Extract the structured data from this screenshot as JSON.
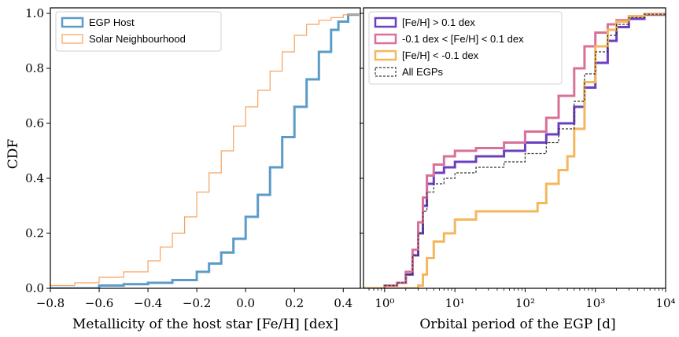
{
  "figure": {
    "background": "#ffffff"
  },
  "chart_data": [
    {
      "type": "line",
      "step": true,
      "xlabel": "Metallicity of the host star [Fe/H] [dex]",
      "ylabel": "CDF",
      "xlim": [
        -0.8,
        0.47
      ],
      "ylim": [
        0.0,
        1.02
      ],
      "xticks": [
        -0.8,
        -0.6,
        -0.4,
        -0.2,
        0.0,
        0.2,
        0.4
      ],
      "xtick_labels": [
        "−0.8",
        "−0.6",
        "−0.4",
        "−0.2",
        "0.0",
        "0.2",
        "0.4"
      ],
      "yticks": [
        0.0,
        0.2,
        0.4,
        0.6,
        0.8,
        1.0
      ],
      "ytick_labels": [
        "0.0",
        "0.2",
        "0.4",
        "0.6",
        "0.8",
        "1.0"
      ],
      "legend_position": "upper-left",
      "series": [
        {
          "name": "EGP Host",
          "color": "#5b9bc7",
          "width": 3,
          "x": [
            -0.8,
            -0.6,
            -0.5,
            -0.4,
            -0.3,
            -0.2,
            -0.15,
            -0.1,
            -0.05,
            0.0,
            0.05,
            0.1,
            0.15,
            0.2,
            0.25,
            0.3,
            0.35,
            0.38,
            0.42,
            0.46
          ],
          "y": [
            0.0,
            0.01,
            0.015,
            0.02,
            0.03,
            0.06,
            0.09,
            0.13,
            0.18,
            0.26,
            0.34,
            0.44,
            0.55,
            0.66,
            0.76,
            0.86,
            0.94,
            0.97,
            0.995,
            1.0
          ]
        },
        {
          "name": "Solar Neighbourhood",
          "color": "#f5a25d",
          "width": 1.2,
          "x": [
            -0.8,
            -0.7,
            -0.6,
            -0.5,
            -0.4,
            -0.35,
            -0.3,
            -0.25,
            -0.2,
            -0.15,
            -0.1,
            -0.05,
            0.0,
            0.05,
            0.1,
            0.15,
            0.2,
            0.25,
            0.3,
            0.35,
            0.4,
            0.46
          ],
          "y": [
            0.01,
            0.02,
            0.04,
            0.06,
            0.1,
            0.15,
            0.2,
            0.26,
            0.35,
            0.42,
            0.5,
            0.59,
            0.66,
            0.72,
            0.79,
            0.86,
            0.92,
            0.96,
            0.975,
            0.985,
            0.995,
            1.0
          ]
        }
      ]
    },
    {
      "type": "line",
      "step": true,
      "xscale": "log",
      "xlabel": "Orbital period of the EGP [d]",
      "ylabel": "",
      "xlim": [
        0.5,
        10000
      ],
      "ylim": [
        0.0,
        1.02
      ],
      "xticks": [
        1,
        10,
        100,
        1000,
        10000
      ],
      "xtick_labels": [
        "10⁰",
        "10¹",
        "10²",
        "10³",
        "10⁴"
      ],
      "legend_position": "upper-left",
      "series": [
        {
          "name": "[Fe/H] > 0.1 dex",
          "color": "#6a3fc0",
          "width": 3,
          "x": [
            0.5,
            1.0,
            1.5,
            2.0,
            2.5,
            3.0,
            3.5,
            4.0,
            5.0,
            7.0,
            10,
            20,
            50,
            100,
            200,
            300,
            500,
            700,
            1000,
            1500,
            2000,
            3000,
            5000,
            10000
          ],
          "y": [
            0.0,
            0.01,
            0.02,
            0.05,
            0.12,
            0.2,
            0.3,
            0.38,
            0.42,
            0.44,
            0.46,
            0.48,
            0.5,
            0.53,
            0.56,
            0.6,
            0.66,
            0.73,
            0.82,
            0.9,
            0.95,
            0.98,
            0.995,
            1.0
          ]
        },
        {
          "name": "-0.1 dex < [Fe/H] < 0.1 dex",
          "color": "#d9709a",
          "width": 3,
          "x": [
            0.5,
            1.0,
            1.5,
            2.0,
            2.5,
            3.0,
            3.5,
            4.0,
            5.0,
            7.0,
            10,
            20,
            50,
            100,
            200,
            300,
            500,
            700,
            1000,
            1500,
            2000,
            3000,
            5000,
            10000
          ],
          "y": [
            0.0,
            0.01,
            0.02,
            0.06,
            0.14,
            0.24,
            0.33,
            0.41,
            0.45,
            0.48,
            0.5,
            0.51,
            0.53,
            0.57,
            0.62,
            0.7,
            0.8,
            0.88,
            0.93,
            0.96,
            0.975,
            0.99,
            0.998,
            1.0
          ]
        },
        {
          "name": "[Fe/H] < -0.1 dex",
          "color": "#f5b75e",
          "width": 3,
          "x": [
            0.5,
            2.0,
            3.0,
            3.5,
            4.0,
            5.0,
            7.0,
            10,
            20,
            50,
            100,
            150,
            200,
            300,
            400,
            500,
            700,
            1000,
            1500,
            2000,
            3000,
            5000,
            10000
          ],
          "y": [
            0.0,
            0.0,
            0.01,
            0.05,
            0.11,
            0.17,
            0.2,
            0.25,
            0.28,
            0.28,
            0.28,
            0.31,
            0.38,
            0.43,
            0.48,
            0.58,
            0.75,
            0.88,
            0.94,
            0.97,
            0.99,
            0.998,
            1.0
          ]
        },
        {
          "name": "All EGPs",
          "color": "#333333",
          "width": 1.2,
          "dash": "3,2",
          "x": [
            0.5,
            1.0,
            1.5,
            2.0,
            2.5,
            3.0,
            3.5,
            4.0,
            5.0,
            7.0,
            10,
            20,
            50,
            100,
            200,
            300,
            500,
            700,
            1000,
            1500,
            2000,
            3000,
            5000,
            10000
          ],
          "y": [
            0.0,
            0.01,
            0.02,
            0.05,
            0.12,
            0.2,
            0.28,
            0.35,
            0.38,
            0.4,
            0.42,
            0.44,
            0.46,
            0.49,
            0.53,
            0.58,
            0.68,
            0.78,
            0.86,
            0.92,
            0.96,
            0.985,
            0.997,
            1.0
          ]
        }
      ]
    }
  ]
}
